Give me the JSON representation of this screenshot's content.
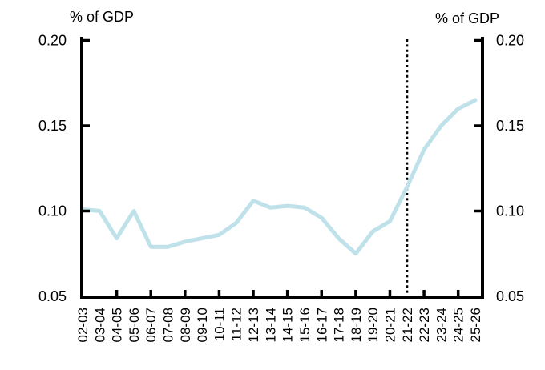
{
  "chart_data": {
    "type": "line",
    "left_axis_title": "% of GDP",
    "right_axis_title": "% of GDP",
    "categories": [
      "02-03",
      "03-04",
      "04-05",
      "05-06",
      "06-07",
      "07-08",
      "08-09",
      "09-10",
      "10-11",
      "11-12",
      "12-13",
      "13-14",
      "14-15",
      "15-16",
      "16-17",
      "17-18",
      "18-19",
      "19-20",
      "20-21",
      "21-22",
      "22-23",
      "23-24",
      "24-25",
      "25-26"
    ],
    "values": [
      0.101,
      0.1,
      0.084,
      0.1,
      0.079,
      0.079,
      0.082,
      0.084,
      0.086,
      0.093,
      0.106,
      0.102,
      0.103,
      0.102,
      0.096,
      0.084,
      0.075,
      0.088,
      0.094,
      0.114,
      0.136,
      0.15,
      0.16,
      0.165
    ],
    "ylim": [
      0.05,
      0.2
    ],
    "y_ticks": [
      0.05,
      0.1,
      0.15,
      0.2
    ],
    "y_tick_labels": [
      "0.05",
      "0.10",
      "0.15",
      "0.20"
    ],
    "x_major_tick_categories": [
      "04-05",
      "06-07",
      "08-09",
      "10-11",
      "12-13",
      "14-15",
      "16-17",
      "18-19",
      "20-21",
      "22-23",
      "24-25"
    ],
    "dotted_vline_category": "21-22",
    "grid": false,
    "legend": "none",
    "colors": {
      "line": "#bfe1ea",
      "axis": "#000000",
      "text": "#000000",
      "divider": "#000000",
      "background": "#ffffff"
    }
  }
}
